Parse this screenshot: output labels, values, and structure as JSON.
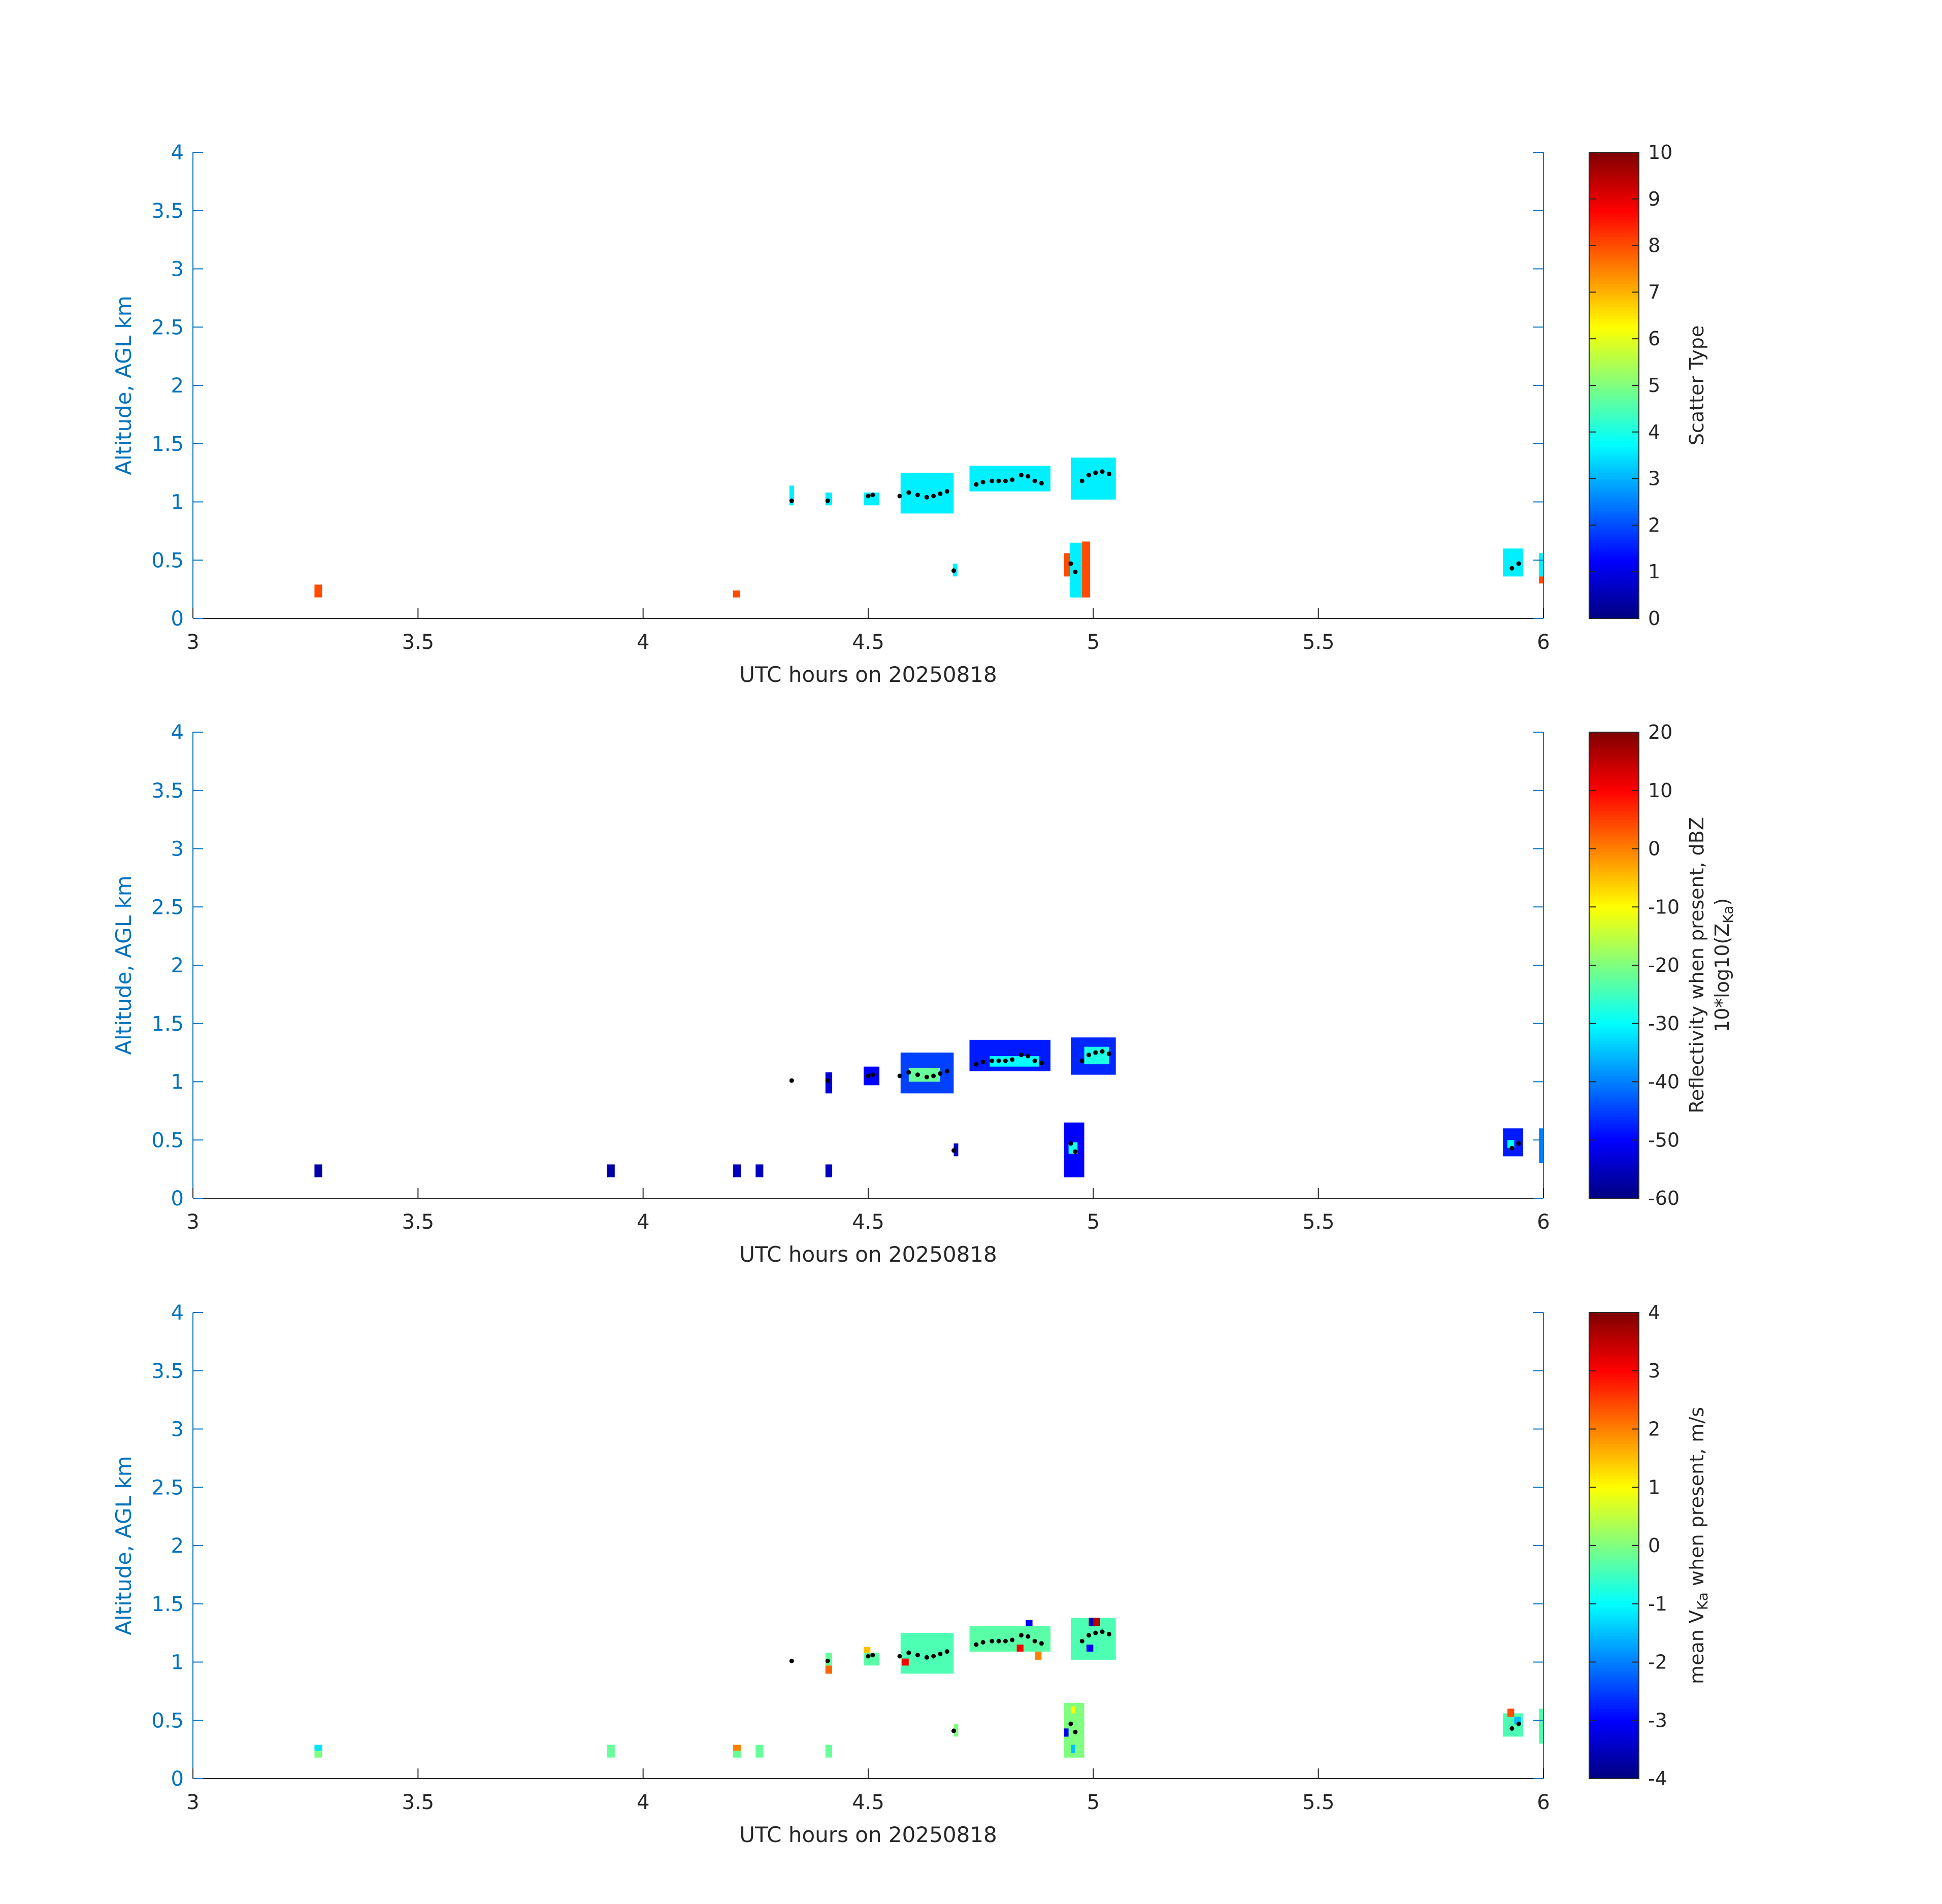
{
  "chart_data": [
    {
      "type": "heatmap",
      "xlabel": "UTC hours on 20250818",
      "ylabel": "Altitude, AGL km",
      "xlim": [
        3,
        6
      ],
      "ylim": [
        0,
        4
      ],
      "xticks": [
        "3",
        "3.5",
        "4",
        "4.5",
        "5",
        "5.5",
        "6"
      ],
      "yticks": [
        "0",
        "0.5",
        "1",
        "1.5",
        "2",
        "2.5",
        "3",
        "3.5",
        "4"
      ],
      "colorbar": {
        "label_lines": [
          "Scatter Type"
        ],
        "range": [
          0,
          10
        ],
        "ticks": [
          "0",
          "1",
          "2",
          "3",
          "4",
          "5",
          "6",
          "7",
          "8",
          "9",
          "10"
        ],
        "colormap": "jet"
      },
      "cells": [
        {
          "x0": 3.27,
          "x1": 3.287,
          "y0": 0.18,
          "y1": 0.29,
          "value": 8
        },
        {
          "x0": 4.2,
          "x1": 4.215,
          "y0": 0.18,
          "y1": 0.24,
          "value": 8
        },
        {
          "x0": 4.325,
          "x1": 4.335,
          "y0": 0.97,
          "y1": 1.14,
          "value": 3.6
        },
        {
          "x0": 4.405,
          "x1": 4.42,
          "y0": 0.97,
          "y1": 1.08,
          "value": 3.6
        },
        {
          "x0": 4.49,
          "x1": 4.525,
          "y0": 0.97,
          "y1": 1.08,
          "value": 3.6
        },
        {
          "x0": 4.572,
          "x1": 4.69,
          "y0": 0.9,
          "y1": 1.25,
          "value": 3.6
        },
        {
          "x0": 4.688,
          "x1": 4.698,
          "y0": 0.36,
          "y1": 0.47,
          "value": 3.6
        },
        {
          "x0": 4.725,
          "x1": 4.905,
          "y0": 1.09,
          "y1": 1.31,
          "value": 3.6
        },
        {
          "x0": 4.935,
          "x1": 4.955,
          "y0": 0.36,
          "y1": 0.56,
          "value": 8
        },
        {
          "x0": 4.948,
          "x1": 4.978,
          "y0": 0.18,
          "y1": 0.65,
          "value": 3.6
        },
        {
          "x0": 4.975,
          "x1": 4.993,
          "y0": 0.18,
          "y1": 0.66,
          "value": 8
        },
        {
          "x0": 4.95,
          "x1": 5.05,
          "y0": 1.02,
          "y1": 1.38,
          "value": 3.6
        },
        {
          "x0": 5.91,
          "x1": 5.955,
          "y0": 0.36,
          "y1": 0.6,
          "value": 3.6
        },
        {
          "x0": 5.99,
          "x1": 6.0,
          "y0": 0.36,
          "y1": 0.56,
          "value": 3.6
        },
        {
          "x0": 5.99,
          "x1": 6.0,
          "y0": 0.3,
          "y1": 0.36,
          "value": 8
        }
      ],
      "points": [
        {
          "x": 4.33,
          "y": 1.01
        },
        {
          "x": 4.41,
          "y": 1.01
        },
        {
          "x": 4.5,
          "y": 1.05
        },
        {
          "x": 4.51,
          "y": 1.06
        },
        {
          "x": 4.57,
          "y": 1.05
        },
        {
          "x": 4.59,
          "y": 1.08
        },
        {
          "x": 4.61,
          "y": 1.06
        },
        {
          "x": 4.63,
          "y": 1.04
        },
        {
          "x": 4.645,
          "y": 1.05
        },
        {
          "x": 4.66,
          "y": 1.07
        },
        {
          "x": 4.675,
          "y": 1.09
        },
        {
          "x": 4.69,
          "y": 0.41
        },
        {
          "x": 4.74,
          "y": 1.15
        },
        {
          "x": 4.755,
          "y": 1.17
        },
        {
          "x": 4.775,
          "y": 1.18
        },
        {
          "x": 4.79,
          "y": 1.18
        },
        {
          "x": 4.805,
          "y": 1.18
        },
        {
          "x": 4.82,
          "y": 1.19
        },
        {
          "x": 4.84,
          "y": 1.23
        },
        {
          "x": 4.855,
          "y": 1.22
        },
        {
          "x": 4.87,
          "y": 1.18
        },
        {
          "x": 4.885,
          "y": 1.16
        },
        {
          "x": 4.95,
          "y": 0.47
        },
        {
          "x": 4.96,
          "y": 0.4
        },
        {
          "x": 4.975,
          "y": 1.18
        },
        {
          "x": 4.99,
          "y": 1.23
        },
        {
          "x": 5.005,
          "y": 1.25
        },
        {
          "x": 5.02,
          "y": 1.26
        },
        {
          "x": 5.035,
          "y": 1.24
        },
        {
          "x": 5.93,
          "y": 0.43
        },
        {
          "x": 5.945,
          "y": 0.47
        }
      ]
    },
    {
      "type": "heatmap",
      "xlabel": "UTC hours on 20250818",
      "ylabel": "Altitude, AGL km",
      "xlim": [
        3,
        6
      ],
      "ylim": [
        0,
        4
      ],
      "xticks": [
        "3",
        "3.5",
        "4",
        "4.5",
        "5",
        "5.5",
        "6"
      ],
      "yticks": [
        "0",
        "0.5",
        "1",
        "1.5",
        "2",
        "2.5",
        "3",
        "3.5",
        "4"
      ],
      "colorbar": {
        "label_lines": [
          "Reflectivity when present, dBZ",
          "10*log10(Z",
          "Ka",
          ")"
        ],
        "range": [
          -60,
          20
        ],
        "ticks": [
          "-60",
          "-50",
          "-40",
          "-30",
          "-20",
          "-10",
          "0",
          "10",
          "20"
        ],
        "colormap": "jet"
      },
      "cells": [
        {
          "x0": 3.27,
          "x1": 3.287,
          "y0": 0.18,
          "y1": 0.29,
          "value": -57
        },
        {
          "x0": 3.92,
          "x1": 3.937,
          "y0": 0.18,
          "y1": 0.29,
          "value": -57
        },
        {
          "x0": 4.2,
          "x1": 4.217,
          "y0": 0.18,
          "y1": 0.29,
          "value": -55
        },
        {
          "x0": 4.25,
          "x1": 4.267,
          "y0": 0.18,
          "y1": 0.29,
          "value": -55
        },
        {
          "x0": 4.405,
          "x1": 4.42,
          "y0": 0.18,
          "y1": 0.29,
          "value": -55
        },
        {
          "x0": 4.405,
          "x1": 4.42,
          "y0": 0.9,
          "y1": 1.08,
          "value": -53
        },
        {
          "x0": 4.49,
          "x1": 4.525,
          "y0": 0.97,
          "y1": 1.13,
          "value": -50
        },
        {
          "x0": 4.572,
          "x1": 4.69,
          "y0": 0.9,
          "y1": 1.25,
          "value": -45
        },
        {
          "x0": 4.59,
          "x1": 4.66,
          "y0": 1.0,
          "y1": 1.12,
          "value": -22
        },
        {
          "x0": 4.69,
          "x1": 4.7,
          "y0": 0.36,
          "y1": 0.47,
          "value": -55
        },
        {
          "x0": 4.725,
          "x1": 4.905,
          "y0": 1.09,
          "y1": 1.36,
          "value": -48
        },
        {
          "x0": 4.77,
          "x1": 4.88,
          "y0": 1.13,
          "y1": 1.22,
          "value": -30
        },
        {
          "x0": 4.935,
          "x1": 4.98,
          "y0": 0.18,
          "y1": 0.65,
          "value": -50
        },
        {
          "x0": 4.945,
          "x1": 4.965,
          "y0": 0.38,
          "y1": 0.48,
          "value": -28
        },
        {
          "x0": 4.95,
          "x1": 5.05,
          "y0": 1.06,
          "y1": 1.38,
          "value": -47
        },
        {
          "x0": 4.98,
          "x1": 5.035,
          "y0": 1.15,
          "y1": 1.3,
          "value": -28
        },
        {
          "x0": 5.91,
          "x1": 5.955,
          "y0": 0.36,
          "y1": 0.6,
          "value": -48
        },
        {
          "x0": 5.92,
          "x1": 5.935,
          "y0": 0.43,
          "y1": 0.5,
          "value": -30
        },
        {
          "x0": 5.99,
          "x1": 6.0,
          "y0": 0.3,
          "y1": 0.6,
          "value": -40
        }
      ],
      "points": [
        {
          "x": 4.33,
          "y": 1.01
        },
        {
          "x": 4.41,
          "y": 1.01
        },
        {
          "x": 4.5,
          "y": 1.05
        },
        {
          "x": 4.51,
          "y": 1.06
        },
        {
          "x": 4.57,
          "y": 1.05
        },
        {
          "x": 4.59,
          "y": 1.08
        },
        {
          "x": 4.61,
          "y": 1.06
        },
        {
          "x": 4.63,
          "y": 1.04
        },
        {
          "x": 4.645,
          "y": 1.05
        },
        {
          "x": 4.66,
          "y": 1.07
        },
        {
          "x": 4.675,
          "y": 1.09
        },
        {
          "x": 4.69,
          "y": 0.41
        },
        {
          "x": 4.74,
          "y": 1.15
        },
        {
          "x": 4.755,
          "y": 1.17
        },
        {
          "x": 4.775,
          "y": 1.18
        },
        {
          "x": 4.79,
          "y": 1.18
        },
        {
          "x": 4.805,
          "y": 1.18
        },
        {
          "x": 4.82,
          "y": 1.19
        },
        {
          "x": 4.84,
          "y": 1.23
        },
        {
          "x": 4.855,
          "y": 1.22
        },
        {
          "x": 4.87,
          "y": 1.18
        },
        {
          "x": 4.885,
          "y": 1.16
        },
        {
          "x": 4.95,
          "y": 0.47
        },
        {
          "x": 4.96,
          "y": 0.4
        },
        {
          "x": 4.975,
          "y": 1.18
        },
        {
          "x": 4.99,
          "y": 1.23
        },
        {
          "x": 5.005,
          "y": 1.25
        },
        {
          "x": 5.02,
          "y": 1.26
        },
        {
          "x": 5.035,
          "y": 1.24
        },
        {
          "x": 5.93,
          "y": 0.43
        },
        {
          "x": 5.945,
          "y": 0.47
        }
      ]
    },
    {
      "type": "heatmap",
      "xlabel": "UTC hours on 20250818",
      "ylabel": "Altitude, AGL km",
      "xlim": [
        3,
        6
      ],
      "ylim": [
        0,
        4
      ],
      "xticks": [
        "3",
        "3.5",
        "4",
        "4.5",
        "5",
        "5.5",
        "6"
      ],
      "yticks": [
        "0",
        "0.5",
        "1",
        "1.5",
        "2",
        "2.5",
        "3",
        "3.5",
        "4"
      ],
      "colorbar": {
        "label_lines": [
          "mean V",
          "Ka",
          " when present, m/s"
        ],
        "range": [
          -4,
          4
        ],
        "ticks": [
          "-4",
          "-3",
          "-2",
          "-1",
          "0",
          "1",
          "2",
          "3",
          "4"
        ],
        "colormap": "jet"
      },
      "cells": [
        {
          "x0": 3.27,
          "x1": 3.287,
          "y0": 0.18,
          "y1": 0.24,
          "value": 0
        },
        {
          "x0": 3.27,
          "x1": 3.287,
          "y0": 0.24,
          "y1": 0.29,
          "value": -1.2
        },
        {
          "x0": 3.92,
          "x1": 3.937,
          "y0": 0.18,
          "y1": 0.29,
          "value": -0.2
        },
        {
          "x0": 4.2,
          "x1": 4.217,
          "y0": 0.18,
          "y1": 0.24,
          "value": -0.2
        },
        {
          "x0": 4.2,
          "x1": 4.217,
          "y0": 0.24,
          "y1": 0.29,
          "value": 2
        },
        {
          "x0": 4.25,
          "x1": 4.267,
          "y0": 0.18,
          "y1": 0.29,
          "value": -0.2
        },
        {
          "x0": 4.405,
          "x1": 4.42,
          "y0": 0.18,
          "y1": 0.29,
          "value": -0.2
        },
        {
          "x0": 4.405,
          "x1": 4.42,
          "y0": 0.97,
          "y1": 1.08,
          "value": -0.2
        },
        {
          "x0": 4.405,
          "x1": 4.42,
          "y0": 0.9,
          "y1": 0.97,
          "value": 2.2
        },
        {
          "x0": 4.49,
          "x1": 4.525,
          "y0": 0.97,
          "y1": 1.08,
          "value": -0.3
        },
        {
          "x0": 4.49,
          "x1": 4.505,
          "y0": 1.08,
          "y1": 1.13,
          "value": 1.5
        },
        {
          "x0": 4.572,
          "x1": 4.69,
          "y0": 0.9,
          "y1": 1.25,
          "value": -0.4
        },
        {
          "x0": 4.575,
          "x1": 4.59,
          "y0": 0.97,
          "y1": 1.03,
          "value": 3
        },
        {
          "x0": 4.69,
          "x1": 4.7,
          "y0": 0.36,
          "y1": 0.47,
          "value": 0
        },
        {
          "x0": 4.725,
          "x1": 4.905,
          "y0": 1.09,
          "y1": 1.31,
          "value": -0.3
        },
        {
          "x0": 4.83,
          "x1": 4.845,
          "y0": 1.09,
          "y1": 1.15,
          "value": 3
        },
        {
          "x0": 4.87,
          "x1": 4.885,
          "y0": 1.02,
          "y1": 1.09,
          "value": 2
        },
        {
          "x0": 4.85,
          "x1": 4.865,
          "y0": 1.31,
          "y1": 1.36,
          "value": -3
        },
        {
          "x0": 4.935,
          "x1": 4.98,
          "y0": 0.18,
          "y1": 0.65,
          "value": 0
        },
        {
          "x0": 4.935,
          "x1": 4.945,
          "y0": 0.36,
          "y1": 0.43,
          "value": -3.2
        },
        {
          "x0": 4.95,
          "x1": 4.96,
          "y0": 0.56,
          "y1": 0.62,
          "value": 1
        },
        {
          "x0": 4.95,
          "x1": 4.96,
          "y0": 0.22,
          "y1": 0.29,
          "value": -1.5
        },
        {
          "x0": 4.95,
          "x1": 5.05,
          "y0": 1.02,
          "y1": 1.38,
          "value": -0.4
        },
        {
          "x0": 4.985,
          "x1": 5.0,
          "y0": 1.09,
          "y1": 1.15,
          "value": -3
        },
        {
          "x0": 5.0,
          "x1": 5.015,
          "y0": 1.31,
          "y1": 1.38,
          "value": 3.6
        },
        {
          "x0": 4.99,
          "x1": 5.0,
          "y0": 1.31,
          "y1": 1.38,
          "value": -3.6
        },
        {
          "x0": 5.91,
          "x1": 5.955,
          "y0": 0.36,
          "y1": 0.56,
          "value": -0.4
        },
        {
          "x0": 5.92,
          "x1": 5.935,
          "y0": 0.53,
          "y1": 0.6,
          "value": 2.4
        },
        {
          "x0": 5.935,
          "x1": 5.95,
          "y0": 0.47,
          "y1": 0.53,
          "value": -1.5
        },
        {
          "x0": 5.99,
          "x1": 6.0,
          "y0": 0.3,
          "y1": 0.6,
          "value": -0.4
        }
      ],
      "points": [
        {
          "x": 4.33,
          "y": 1.01
        },
        {
          "x": 4.41,
          "y": 1.01
        },
        {
          "x": 4.5,
          "y": 1.05
        },
        {
          "x": 4.51,
          "y": 1.06
        },
        {
          "x": 4.57,
          "y": 1.05
        },
        {
          "x": 4.59,
          "y": 1.08
        },
        {
          "x": 4.61,
          "y": 1.06
        },
        {
          "x": 4.63,
          "y": 1.04
        },
        {
          "x": 4.645,
          "y": 1.05
        },
        {
          "x": 4.66,
          "y": 1.07
        },
        {
          "x": 4.675,
          "y": 1.09
        },
        {
          "x": 4.69,
          "y": 0.41
        },
        {
          "x": 4.74,
          "y": 1.15
        },
        {
          "x": 4.755,
          "y": 1.17
        },
        {
          "x": 4.775,
          "y": 1.18
        },
        {
          "x": 4.79,
          "y": 1.18
        },
        {
          "x": 4.805,
          "y": 1.18
        },
        {
          "x": 4.82,
          "y": 1.19
        },
        {
          "x": 4.84,
          "y": 1.23
        },
        {
          "x": 4.855,
          "y": 1.22
        },
        {
          "x": 4.87,
          "y": 1.18
        },
        {
          "x": 4.885,
          "y": 1.16
        },
        {
          "x": 4.95,
          "y": 0.47
        },
        {
          "x": 4.96,
          "y": 0.4
        },
        {
          "x": 4.975,
          "y": 1.18
        },
        {
          "x": 4.99,
          "y": 1.23
        },
        {
          "x": 5.005,
          "y": 1.25
        },
        {
          "x": 5.02,
          "y": 1.26
        },
        {
          "x": 5.035,
          "y": 1.24
        },
        {
          "x": 5.93,
          "y": 0.43
        },
        {
          "x": 5.945,
          "y": 0.47
        }
      ]
    }
  ]
}
